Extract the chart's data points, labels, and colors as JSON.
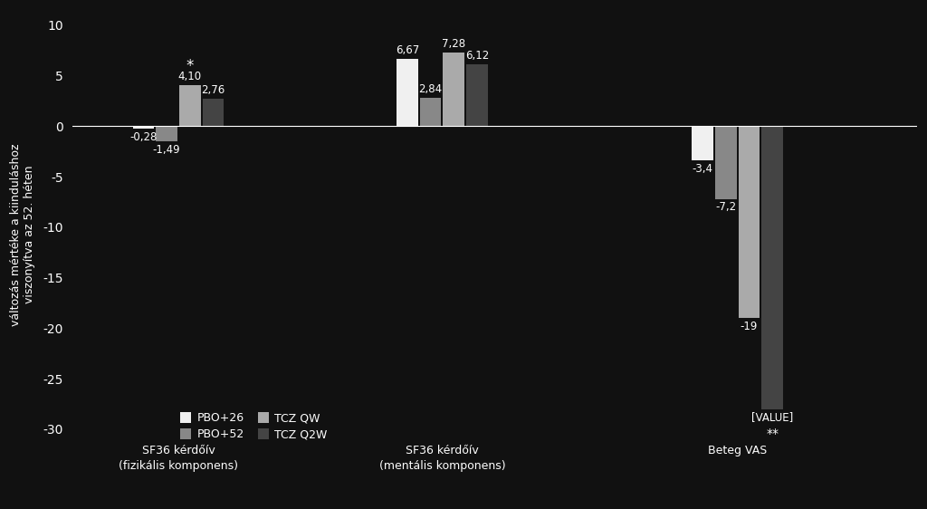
{
  "background_color": "#111111",
  "text_color": "#ffffff",
  "ylabel": "változás mértéke a kiinduláshoz\nviszonyítva az 52. héten",
  "ylim": [
    -33,
    11.5
  ],
  "yticks": [
    -30,
    -25,
    -20,
    -15,
    -10,
    -5,
    0,
    5,
    10
  ],
  "groups": [
    "SF36 kérdőív\n(fizikális komponens)",
    "SF36 kérdőív\n(mentális komponens)",
    "Beteg VAS"
  ],
  "series": [
    "PBO+26",
    "PBO+52",
    "TCZ QW",
    "TCZ Q2W"
  ],
  "colors": [
    "#f0f0f0",
    "#888888",
    "#aaaaaa",
    "#444444"
  ],
  "values": [
    [
      -0.28,
      -1.49,
      4.1,
      2.76
    ],
    [
      6.67,
      2.84,
      7.28,
      6.12
    ],
    [
      -3.4,
      -7.2,
      -19.0,
      -28.0
    ]
  ],
  "bar_annotations": [
    [
      "-0,28",
      "-1,49",
      "4,10",
      "2,76"
    ],
    [
      "6,67",
      "2,84",
      "7,28",
      "6,12"
    ],
    [
      "-3,4",
      "-7,2",
      "-19",
      "[VALUE]"
    ]
  ],
  "legend_labels": [
    "PBO+26",
    "PBO+52",
    "TCZ QW",
    "TCZ Q2W"
  ],
  "bar_width": 0.22,
  "group_positions": [
    1.5,
    4.0,
    6.8
  ],
  "xlim": [
    0.5,
    8.5
  ]
}
